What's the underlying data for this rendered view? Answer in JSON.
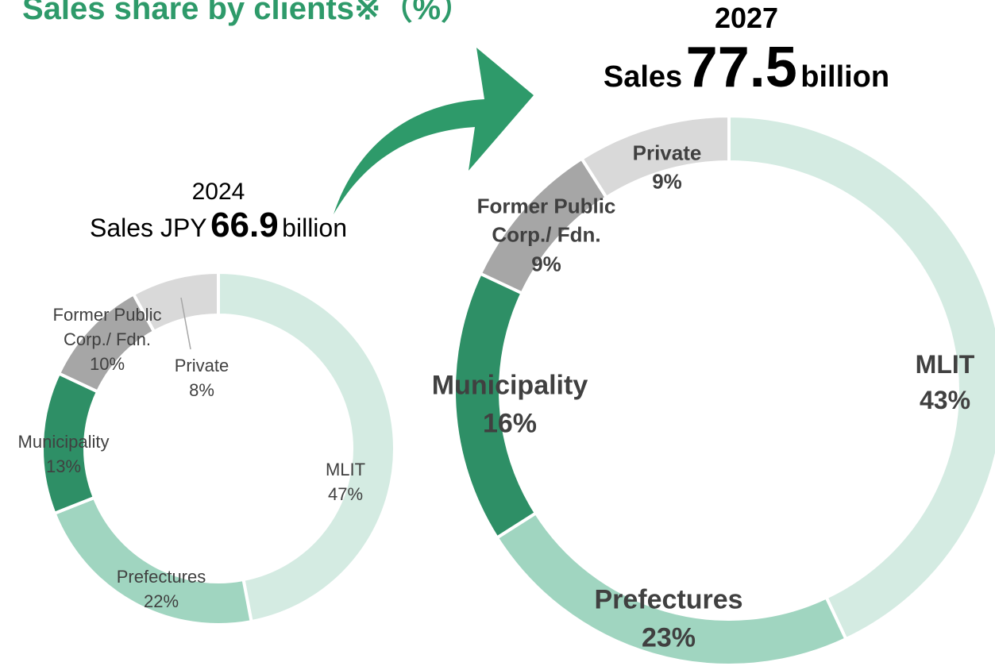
{
  "title": "Sales share by clients※（%）",
  "chart_data": [
    {
      "type": "pie",
      "title": "2024",
      "total_prefix": "Sales JPY",
      "total": 66.9,
      "total_suffix": "billion",
      "categories": [
        "MLIT",
        "Prefectures",
        "Municipality",
        "Former Public Corp./ Fdn.",
        "Private"
      ],
      "values": [
        47,
        22,
        13,
        10,
        8
      ],
      "value_labels": [
        "47%",
        "22%",
        "13%",
        "10%",
        "8%"
      ],
      "colors": [
        "#d4ebe2",
        "#a0d5c0",
        "#2e8f66",
        "#a6a6a6",
        "#d9d9d9"
      ]
    },
    {
      "type": "pie",
      "title": "2027",
      "total_prefix": "Sales",
      "total": 77.5,
      "total_suffix": "billion",
      "categories": [
        "MLIT",
        "Prefectures",
        "Municipality",
        "Former Public Corp./ Fdn.",
        "Private"
      ],
      "values": [
        43,
        23,
        16,
        9,
        9
      ],
      "value_labels": [
        "43%",
        "23%",
        "16%",
        "9%",
        "9%"
      ],
      "colors": [
        "#d4ebe2",
        "#a0d5c0",
        "#2e8f66",
        "#a6a6a6",
        "#d9d9d9"
      ]
    }
  ]
}
